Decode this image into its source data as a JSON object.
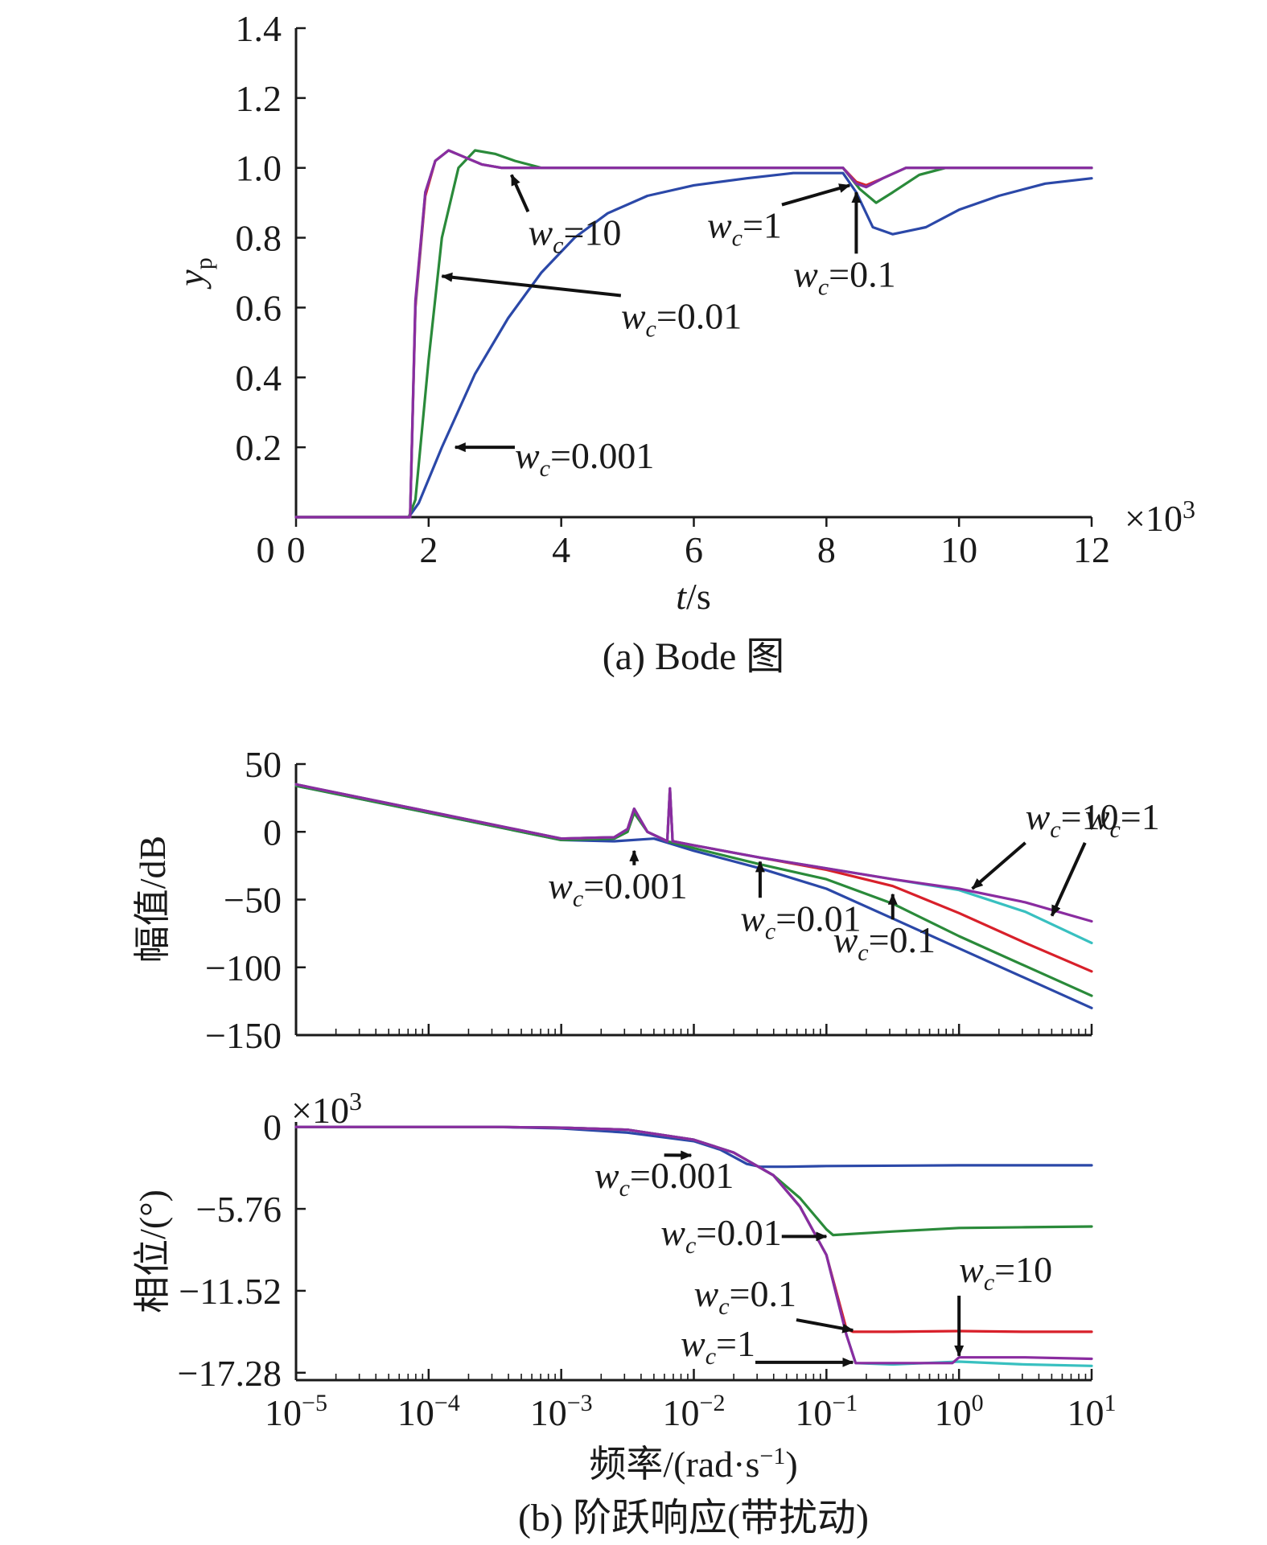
{
  "colors": {
    "wc_0.001": "#2b48a8",
    "wc_0.01": "#2a8a3a",
    "wc_0.1": "#d8202a",
    "wc_1": "#38c0c0",
    "wc_10": "#8a2ca0"
  },
  "chart_data": [
    {
      "type": "line",
      "panel": "a",
      "caption": "(a) Bode 图",
      "xlabel_var": "t",
      "xlabel_unit": "/s",
      "ylabel_main": "y",
      "ylabel_sub": "p",
      "x_multiplier": "×10",
      "x_multiplier_exp": "3",
      "xlim": [
        0,
        12
      ],
      "ylim": [
        0,
        1.4
      ],
      "xticks": [
        0,
        2,
        4,
        6,
        8,
        10,
        12
      ],
      "xtick_labels": [
        "0",
        "2",
        "4",
        "6",
        "8",
        "10",
        "12"
      ],
      "yticks": [
        0.2,
        0.4,
        0.6,
        0.8,
        1.0,
        1.2,
        1.4
      ],
      "ytick_labels": [
        "0.2",
        "0.4",
        "0.6",
        "0.8",
        "1.0",
        "1.2",
        "1.4"
      ],
      "series": [
        {
          "name": "w_c=0.001",
          "color": "#2b48a8",
          "x": [
            0,
            1.7,
            1.85,
            2.2,
            2.7,
            3.2,
            3.7,
            4.2,
            4.7,
            5.3,
            6,
            6.8,
            7.5,
            8.25,
            8.45,
            8.7,
            9.0,
            9.5,
            10.0,
            10.6,
            11.3,
            12
          ],
          "y": [
            0,
            0,
            0.04,
            0.2,
            0.41,
            0.57,
            0.7,
            0.8,
            0.87,
            0.92,
            0.95,
            0.97,
            0.985,
            0.985,
            0.93,
            0.83,
            0.81,
            0.83,
            0.88,
            0.92,
            0.955,
            0.97
          ]
        },
        {
          "name": "w_c=0.01",
          "color": "#2a8a3a",
          "x": [
            0,
            1.7,
            1.8,
            2.0,
            2.2,
            2.45,
            2.7,
            3.0,
            3.3,
            3.7,
            4.5,
            8.25,
            8.5,
            8.75,
            9.0,
            9.4,
            9.8,
            10.2,
            12
          ],
          "y": [
            0,
            0,
            0.05,
            0.45,
            0.8,
            1.0,
            1.05,
            1.04,
            1.02,
            1.0,
            1.0,
            1.0,
            0.94,
            0.9,
            0.93,
            0.98,
            1.0,
            1.0,
            1.0
          ]
        },
        {
          "name": "w_c=0.1",
          "color": "#d8202a",
          "x": [
            0,
            1.72,
            1.8,
            1.95,
            2.1,
            2.3,
            2.55,
            2.8,
            3.1,
            3.5,
            8.25,
            8.45,
            8.6,
            8.85,
            9.2,
            9.6,
            12
          ],
          "y": [
            0,
            0,
            0.6,
            0.92,
            1.02,
            1.05,
            1.03,
            1.01,
            1.0,
            1.0,
            1.0,
            0.96,
            0.95,
            0.97,
            1.0,
            1.0,
            1.0
          ]
        },
        {
          "name": "w_c=1",
          "color": "#38c0c0",
          "x": [
            0,
            1.72,
            1.8,
            1.95,
            2.1,
            2.3,
            2.55,
            2.8,
            3.1,
            3.5,
            8.25,
            8.45,
            8.6,
            8.85,
            9.2,
            9.6,
            12
          ],
          "y": [
            0,
            0,
            0.61,
            0.93,
            1.02,
            1.05,
            1.03,
            1.01,
            1.0,
            1.0,
            1.0,
            0.955,
            0.945,
            0.97,
            1.0,
            1.0,
            1.0
          ]
        },
        {
          "name": "w_c=10",
          "color": "#8a2ca0",
          "x": [
            0,
            1.72,
            1.8,
            1.95,
            2.1,
            2.3,
            2.55,
            2.8,
            3.1,
            3.5,
            8.25,
            8.45,
            8.6,
            8.85,
            9.2,
            9.6,
            12
          ],
          "y": [
            0,
            0,
            0.62,
            0.93,
            1.02,
            1.05,
            1.03,
            1.01,
            1.0,
            1.0,
            1.0,
            0.955,
            0.945,
            0.97,
            1.0,
            1.0,
            1.0
          ]
        }
      ],
      "annotations": [
        {
          "pre": "w",
          "sub": "c",
          "post": "=10",
          "tx": 3.5,
          "ty": 0.78,
          "ax": 3.25,
          "ay": 0.98
        },
        {
          "pre": "w",
          "sub": "c",
          "post": "=1",
          "tx": 6.2,
          "ty": 0.8,
          "ax": 8.35,
          "ay": 0.95
        },
        {
          "pre": "w",
          "sub": "c",
          "post": "=0.1",
          "tx": 7.5,
          "ty": 0.66,
          "ax": 8.45,
          "ay": 0.93
        },
        {
          "pre": "w",
          "sub": "c",
          "post": "=0.01",
          "tx": 4.9,
          "ty": 0.54,
          "ax": 2.2,
          "ay": 0.69
        },
        {
          "pre": "w",
          "sub": "c",
          "post": "=0.001",
          "tx": 3.3,
          "ty": 0.14,
          "ax": 2.4,
          "ay": 0.2
        }
      ]
    },
    {
      "type": "line",
      "panel": "b-magnitude",
      "xscale": "log",
      "ylabel": "幅值/dB",
      "xlim": [
        -5,
        1
      ],
      "ylim": [
        -150,
        50
      ],
      "yticks": [
        50,
        0,
        -50,
        -100,
        -150
      ],
      "ytick_labels": [
        "50",
        "0",
        "−50",
        "−100",
        "−150"
      ],
      "series": [
        {
          "name": "w_c=0.001",
          "color": "#2b48a8",
          "log10_freq": [
            -5,
            -4,
            -3,
            -2.6,
            -2.3,
            -2.2,
            -2,
            -1.5,
            -1,
            -0.5,
            0,
            0.5,
            1
          ],
          "db": [
            34,
            14,
            -6,
            -7,
            -5,
            -8,
            -14,
            -27,
            -42,
            -64,
            -86,
            -108,
            -130
          ]
        },
        {
          "name": "w_c=0.01",
          "color": "#2a8a3a",
          "log10_freq": [
            -5,
            -4,
            -3,
            -2.6,
            -2.5,
            -2.45,
            -2.35,
            -2.2,
            -2,
            -1.5,
            -1,
            -0.5,
            0,
            0.5,
            1
          ],
          "db": [
            34,
            14,
            -6,
            -5,
            0,
            14,
            0,
            -7,
            -12,
            -24,
            -35,
            -53,
            -77,
            -99,
            -121
          ]
        },
        {
          "name": "w_c=0.1",
          "color": "#d8202a",
          "log10_freq": [
            -5,
            -4,
            -3,
            -2.6,
            -2.5,
            -2.45,
            -2.35,
            -2.2,
            -2.18,
            -2.16,
            -2,
            -1.5,
            -1,
            -0.5,
            0,
            0.5,
            1
          ],
          "db": [
            35,
            15,
            -5,
            -4,
            2,
            17,
            0,
            -7,
            32,
            -7,
            -10,
            -19,
            -28,
            -40,
            -60,
            -82,
            -103
          ]
        },
        {
          "name": "w_c=1",
          "color": "#38c0c0",
          "log10_freq": [
            -5,
            -4,
            -3,
            -2.6,
            -2.5,
            -2.45,
            -2.35,
            -2.2,
            -2.18,
            -2.16,
            -2,
            -1.5,
            -1,
            -0.5,
            0,
            0.5,
            1
          ],
          "db": [
            35,
            15,
            -5,
            -4,
            2,
            17,
            0,
            -7,
            32,
            -7,
            -10,
            -19,
            -27,
            -35,
            -43,
            -59,
            -82
          ]
        },
        {
          "name": "w_c=10",
          "color": "#8a2ca0",
          "log10_freq": [
            -5,
            -4,
            -3,
            -2.6,
            -2.5,
            -2.45,
            -2.35,
            -2.2,
            -2.18,
            -2.16,
            -2,
            -1.5,
            -1,
            -0.5,
            0,
            0.5,
            1
          ],
          "db": [
            35,
            15,
            -5,
            -4,
            2,
            17,
            0,
            -7,
            32,
            -7,
            -10,
            -19,
            -27,
            -35,
            -42,
            -52,
            -66
          ]
        }
      ],
      "annotations": [
        {
          "pre": "w",
          "sub": "c",
          "post": "=10",
          "tx": 0.5,
          "ty": 2,
          "ax": 0.1,
          "ay": -42
        },
        {
          "pre": "w",
          "sub": "c",
          "post": "=1",
          "tx": 0.95,
          "ty": 2,
          "ax": 0.7,
          "ay": -62
        },
        {
          "pre": "w",
          "sub": "c",
          "post": "=0.001",
          "tx": -3.1,
          "ty": -49,
          "ax": -2.45,
          "ay": -14
        },
        {
          "pre": "w",
          "sub": "c",
          "post": "=0.01",
          "tx": -1.65,
          "ty": -73,
          "ax": -1.5,
          "ay": -22
        },
        {
          "pre": "w",
          "sub": "c",
          "post": "=0.1",
          "tx": -0.95,
          "ty": -89,
          "ax": -0.5,
          "ay": -46
        }
      ]
    },
    {
      "type": "line",
      "panel": "b-phase",
      "xscale": "log",
      "ylabel": "相位/(°)",
      "y_multiplier": "×10",
      "y_multiplier_exp": "3",
      "xlabel": "频率/(rad·s",
      "xlabel_sup": "−1",
      "xlabel_close": ")",
      "caption": "(b) 阶跃响应(带扰动)",
      "xlim": [
        -5,
        1
      ],
      "ylim": [
        -17.8,
        0.35
      ],
      "xtick_bases": [
        "10",
        "10",
        "10",
        "10",
        "10",
        "10",
        "10"
      ],
      "xtick_exps": [
        "−5",
        "−4",
        "−3",
        "−2",
        "−1",
        "0",
        "1"
      ],
      "yticks": [
        0,
        -5.76,
        -11.52,
        -17.28
      ],
      "ytick_labels": [
        "0",
        "−5.76",
        "−11.52",
        "−17.28"
      ],
      "series": [
        {
          "name": "w_c=0.001",
          "color": "#2b48a8",
          "log10_freq": [
            -5,
            -3.5,
            -3,
            -2.5,
            -2,
            -1.8,
            -1.6,
            -1.5,
            -1.3,
            -1,
            0,
            1
          ],
          "deg_k": [
            0,
            0,
            -0.1,
            -0.4,
            -1.0,
            -1.6,
            -2.6,
            -2.8,
            -2.8,
            -2.75,
            -2.7,
            -2.7
          ]
        },
        {
          "name": "w_c=0.01",
          "color": "#2a8a3a",
          "log10_freq": [
            -5,
            -3.5,
            -3,
            -2.5,
            -2,
            -1.7,
            -1.4,
            -1.2,
            -1,
            -0.95,
            -0.5,
            0,
            0.5,
            1
          ],
          "deg_k": [
            0,
            0,
            -0.05,
            -0.2,
            -0.9,
            -1.8,
            -3.4,
            -5.0,
            -7.2,
            -7.6,
            -7.35,
            -7.1,
            -7.05,
            -7.0
          ]
        },
        {
          "name": "w_c=0.1",
          "color": "#d8202a",
          "log10_freq": [
            -5,
            -3.5,
            -3,
            -2.5,
            -2,
            -1.7,
            -1.4,
            -1.2,
            -1,
            -0.85,
            -0.8,
            -0.5,
            0,
            0.5,
            1
          ],
          "deg_k": [
            0,
            0,
            -0.05,
            -0.2,
            -0.9,
            -1.8,
            -3.4,
            -5.6,
            -9.0,
            -14.2,
            -14.4,
            -14.4,
            -14.35,
            -14.4,
            -14.4
          ]
        },
        {
          "name": "w_c=1",
          "color": "#38c0c0",
          "log10_freq": [
            -5,
            -3.5,
            -3,
            -2.5,
            -2,
            -1.7,
            -1.4,
            -1.2,
            -1,
            -0.85,
            -0.78,
            -0.5,
            0,
            0.5,
            1
          ],
          "deg_k": [
            0,
            0,
            -0.05,
            -0.2,
            -0.9,
            -1.8,
            -3.4,
            -5.6,
            -9.0,
            -14.6,
            -16.6,
            -16.7,
            -16.5,
            -16.7,
            -16.8
          ]
        },
        {
          "name": "w_c=10",
          "color": "#8a2ca0",
          "log10_freq": [
            -5,
            -3.5,
            -3,
            -2.5,
            -2,
            -1.7,
            -1.4,
            -1.2,
            -1,
            -0.85,
            -0.78,
            -0.5,
            -0.05,
            0,
            0.5,
            1
          ],
          "deg_k": [
            0,
            0,
            -0.05,
            -0.2,
            -0.9,
            -1.8,
            -3.4,
            -5.6,
            -9.0,
            -14.6,
            -16.6,
            -16.6,
            -16.6,
            -16.2,
            -16.2,
            -16.3
          ]
        }
      ],
      "annotations": [
        {
          "pre": "w",
          "sub": "c",
          "post": "=0.001",
          "tx": -2.75,
          "ty": -4.3,
          "ax": -2.02,
          "ay": -2.0
        },
        {
          "pre": "w",
          "sub": "c",
          "post": "=0.01",
          "tx": -2.25,
          "ty": -8.3,
          "ax": -1.0,
          "ay": -7.7
        },
        {
          "pre": "w",
          "sub": "c",
          "post": "=0.1",
          "tx": -2.0,
          "ty": -12.6,
          "ax": -0.8,
          "ay": -14.3
        },
        {
          "pre": "w",
          "sub": "c",
          "post": "=10",
          "tx": 0.0,
          "ty": -10.9,
          "ax": 0.0,
          "ay": -16.1
        },
        {
          "pre": "w",
          "sub": "c",
          "post": "=1",
          "tx": -2.1,
          "ty": -16.1,
          "ax": -0.8,
          "ay": -16.55
        }
      ]
    }
  ]
}
